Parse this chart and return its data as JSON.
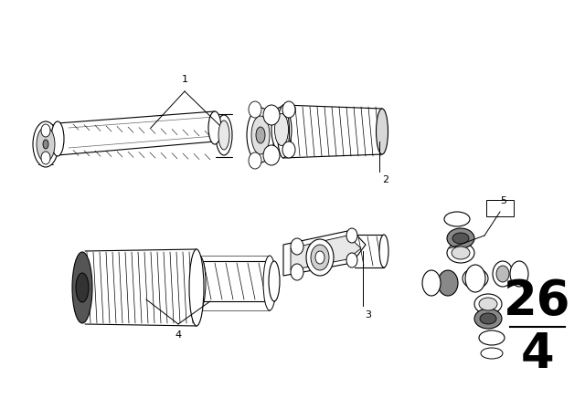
{
  "bg_color": "#ffffff",
  "fig_w": 6.4,
  "fig_h": 4.48,
  "dpi": 100,
  "page_num_top": "26",
  "page_num_bot": "4",
  "label_fs": 8
}
